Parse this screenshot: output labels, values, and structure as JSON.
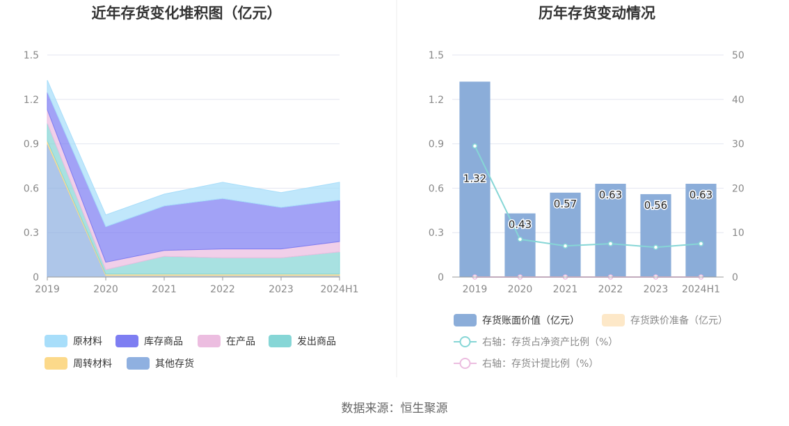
{
  "source_label": "数据来源：恒生聚源",
  "chart_data": [
    {
      "type": "area",
      "stacked": true,
      "title": "近年存货变化堆积图（亿元）",
      "x": [
        "2019",
        "2020",
        "2021",
        "2022",
        "2023",
        "2024H1"
      ],
      "yticks": [
        "0",
        "0.3",
        "0.6",
        "0.9",
        "1.2",
        "1.5"
      ],
      "ylim": [
        0,
        1.5
      ],
      "grid": true,
      "legend_position": "bottom",
      "series": [
        {
          "name": "其他存货",
          "color": "#8fb0e0",
          "values": [
            0.9,
            0.01,
            0.01,
            0.01,
            0.01,
            0.01
          ]
        },
        {
          "name": "周转材料",
          "color": "#fcd98a",
          "values": [
            0.02,
            0.01,
            0.01,
            0.01,
            0.01,
            0.01
          ]
        },
        {
          "name": "发出商品",
          "color": "#86d6d6",
          "values": [
            0.12,
            0.03,
            0.12,
            0.11,
            0.11,
            0.15
          ]
        },
        {
          "name": "在产品",
          "color": "#ecbde0",
          "values": [
            0.09,
            0.05,
            0.04,
            0.06,
            0.06,
            0.07
          ]
        },
        {
          "name": "库存商品",
          "color": "#7e7ef2",
          "values": [
            0.12,
            0.24,
            0.3,
            0.34,
            0.28,
            0.28
          ]
        },
        {
          "name": "原材料",
          "color": "#a8defa",
          "values": [
            0.08,
            0.08,
            0.08,
            0.11,
            0.1,
            0.12
          ]
        }
      ],
      "legend_order": [
        "原材料",
        "库存商品",
        "在产品",
        "发出商品",
        "周转材料",
        "其他存货"
      ]
    },
    {
      "type": "bar",
      "title": "历年存货变动情况",
      "categories": [
        "2019",
        "2020",
        "2021",
        "2022",
        "2023",
        "2024H1"
      ],
      "y_left_ticks": [
        "0",
        "0.3",
        "0.6",
        "0.9",
        "1.2",
        "1.5"
      ],
      "y_left_lim": [
        0,
        1.5
      ],
      "y_right_ticks": [
        "0",
        "10",
        "20",
        "30",
        "40",
        "50"
      ],
      "y_right_lim": [
        0,
        50
      ],
      "grid": true,
      "legend_position": "bottom",
      "series": [
        {
          "name": "存货账面价值（亿元）",
          "kind": "bar",
          "axis": "left",
          "color": "#8badd9",
          "values": [
            1.32,
            0.43,
            0.57,
            0.63,
            0.56,
            0.63
          ],
          "labels": [
            "1.32",
            "0.43",
            "0.57",
            "0.63",
            "0.56",
            "0.63"
          ]
        },
        {
          "name": "存货跌价准备（亿元）",
          "kind": "bar",
          "axis": "left",
          "color": "#fde8c8",
          "values": [
            0,
            0,
            0,
            0,
            0,
            0
          ]
        },
        {
          "name": "右轴：存货占净资产比例（%）",
          "kind": "line",
          "axis": "right",
          "color": "#86d6d6",
          "values": [
            29.5,
            8.5,
            7.0,
            7.5,
            6.7,
            7.5
          ]
        },
        {
          "name": "右轴：存货计提比例（%）",
          "kind": "line",
          "axis": "right",
          "color": "#ecbde0",
          "values": [
            0,
            0,
            0,
            0,
            0,
            0
          ]
        }
      ]
    }
  ]
}
